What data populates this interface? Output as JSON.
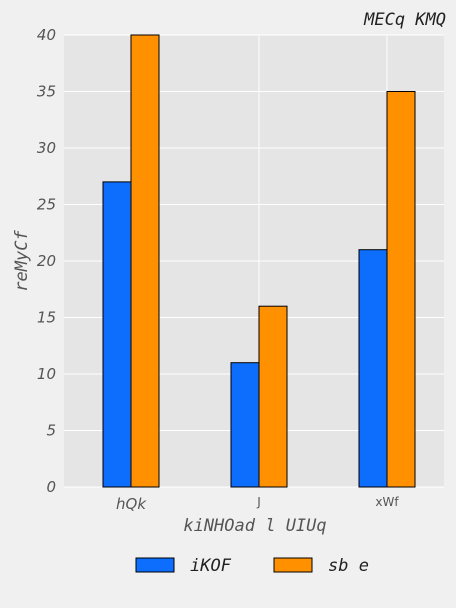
{
  "chart_data": {
    "type": "bar",
    "title": "MECq KMQ",
    "xlabel": "kiNHOad l UIUq",
    "ylabel": "reMyCf",
    "categories": [
      "hQk",
      "J",
      "xWf"
    ],
    "category_label_styles": [
      "italic",
      "small",
      "small"
    ],
    "series": [
      {
        "name": "iKOF",
        "values": [
          27,
          11,
          21
        ],
        "color": "#0d6efd"
      },
      {
        "name": "sb e",
        "values": [
          40,
          16,
          35
        ],
        "color": "#ff9100"
      }
    ],
    "ylim": [
      0,
      40
    ],
    "yticks": [
      0,
      5,
      10,
      15,
      20,
      25,
      30,
      35,
      40
    ],
    "grid": true,
    "legend": "bottom-center"
  }
}
